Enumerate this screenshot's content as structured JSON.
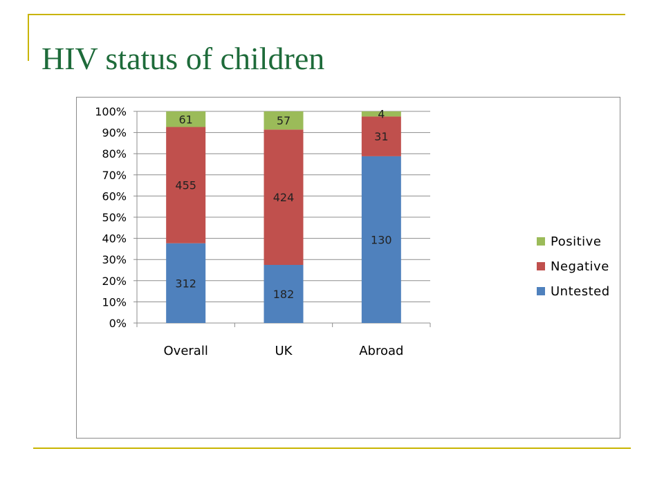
{
  "slide": {
    "title": "HIV status of children"
  },
  "chart_data": {
    "type": "bar",
    "stacked": "percent",
    "categories": [
      "Overall",
      "UK",
      "Abroad"
    ],
    "series": [
      {
        "name": "Untested",
        "values": [
          312,
          182,
          130
        ],
        "color": "#4f81bd"
      },
      {
        "name": "Negative",
        "values": [
          455,
          424,
          31
        ],
        "color": "#c0504d"
      },
      {
        "name": "Positive",
        "values": [
          61,
          57,
          4
        ],
        "color": "#9bbb59"
      }
    ],
    "y_ticks": [
      "0%",
      "10%",
      "20%",
      "30%",
      "40%",
      "50%",
      "60%",
      "70%",
      "80%",
      "90%",
      "100%"
    ],
    "ylim": [
      0,
      100
    ],
    "grid": true,
    "legend_position": "right",
    "title": "",
    "xlabel": "",
    "ylabel": ""
  }
}
